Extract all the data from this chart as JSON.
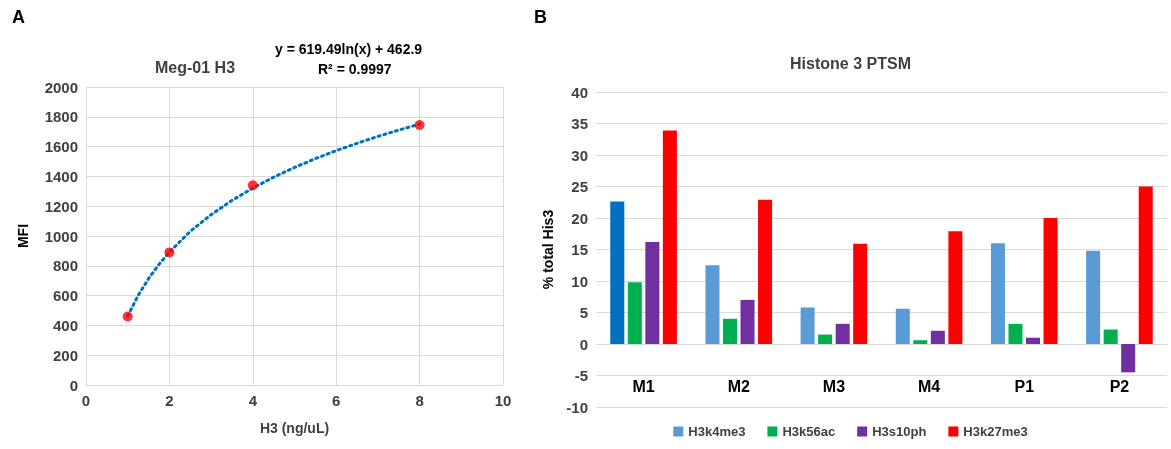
{
  "chart_data": [
    {
      "type": "scatter",
      "title": "Meg-01 H3",
      "xlabel": "H3 (ng/uL)",
      "ylabel": "MFI",
      "annotations": [
        "A",
        "y = 619.49ln(x) + 462.9",
        "R² = 0.9997"
      ],
      "x": [
        1,
        2,
        4,
        8
      ],
      "series": [
        {
          "color": "#ff0000",
          "values": [
            460,
            890,
            1340,
            1745
          ]
        },
        {
          "type": "line",
          "color": "#0070c0",
          "marker": "none",
          "line_style": "dotted",
          "x": [
            1,
            1.25,
            1.5,
            1.75,
            2,
            2.5,
            3,
            3.5,
            4,
            4.5,
            5,
            5.5,
            6,
            6.5,
            7,
            7.5,
            8
          ],
          "values": [
            463,
            601,
            714,
            810,
            892,
            1031,
            1143,
            1239,
            1321,
            1395,
            1460,
            1519,
            1573,
            1622,
            1668,
            1711,
            1751
          ]
        }
      ],
      "xlim": [
        0,
        10
      ],
      "xticks": [
        0,
        2,
        4,
        6,
        8,
        10
      ],
      "ylim": [
        0,
        2000
      ],
      "yticks": [
        0,
        200,
        400,
        600,
        800,
        1000,
        1200,
        1400,
        1600,
        1800,
        2000
      ],
      "grid": true,
      "marker": "circle"
    },
    {
      "type": "bar",
      "title": "Histone 3 PTSM",
      "ylabel": "% total His3",
      "annotations": [
        "B"
      ],
      "categories": [
        "M1",
        "M2",
        "M3",
        "M4",
        "P1",
        "P2"
      ],
      "series": [
        {
          "name": "H3k4me3",
          "color": "#5b9bd5",
          "colors": [
            "#0070c0",
            "#5b9bd5",
            "#5b9bd5",
            "#5b9bd5",
            "#5b9bd5",
            "#5b9bd5"
          ],
          "values": [
            22.6,
            12.5,
            5.8,
            5.6,
            16.0,
            14.8
          ]
        },
        {
          "name": "H3k56ac",
          "color": "#00b050",
          "values": [
            9.8,
            4.0,
            1.5,
            0.6,
            3.2,
            2.3
          ]
        },
        {
          "name": "H3s10ph",
          "color": "#7030a0",
          "values": [
            16.2,
            7.0,
            3.2,
            2.1,
            1.0,
            -4.5
          ]
        },
        {
          "name": "H3k27me3",
          "color": "#ff0000",
          "values": [
            33.9,
            22.9,
            15.9,
            17.9,
            20.0,
            25.0
          ]
        }
      ],
      "ylim": [
        -10,
        40
      ],
      "yticks": [
        -10,
        -5,
        0,
        5,
        10,
        15,
        20,
        25,
        30,
        35,
        40
      ],
      "grid": "y",
      "legend": "bottom"
    }
  ]
}
